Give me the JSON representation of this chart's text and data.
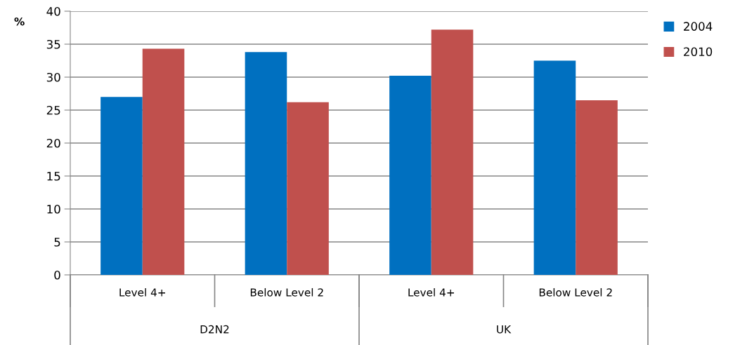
{
  "chart_data": {
    "type": "bar",
    "ylabel": "%",
    "categories": [
      "Level 4+",
      "Below Level 2",
      "Level 4+",
      "Below Level 2"
    ],
    "annotations": [
      "D2N2",
      "UK"
    ],
    "series": [
      {
        "name": "2004",
        "color": "#0070c0",
        "values": [
          27.0,
          33.8,
          30.2,
          32.5
        ]
      },
      {
        "name": "2010",
        "color": "#c0504d",
        "values": [
          34.3,
          26.2,
          37.2,
          26.5
        ]
      }
    ],
    "ylim": [
      0,
      40
    ],
    "yticks": [
      0,
      5,
      10,
      15,
      20,
      25,
      30,
      35,
      40
    ],
    "grid": "y",
    "legend": "top right"
  }
}
